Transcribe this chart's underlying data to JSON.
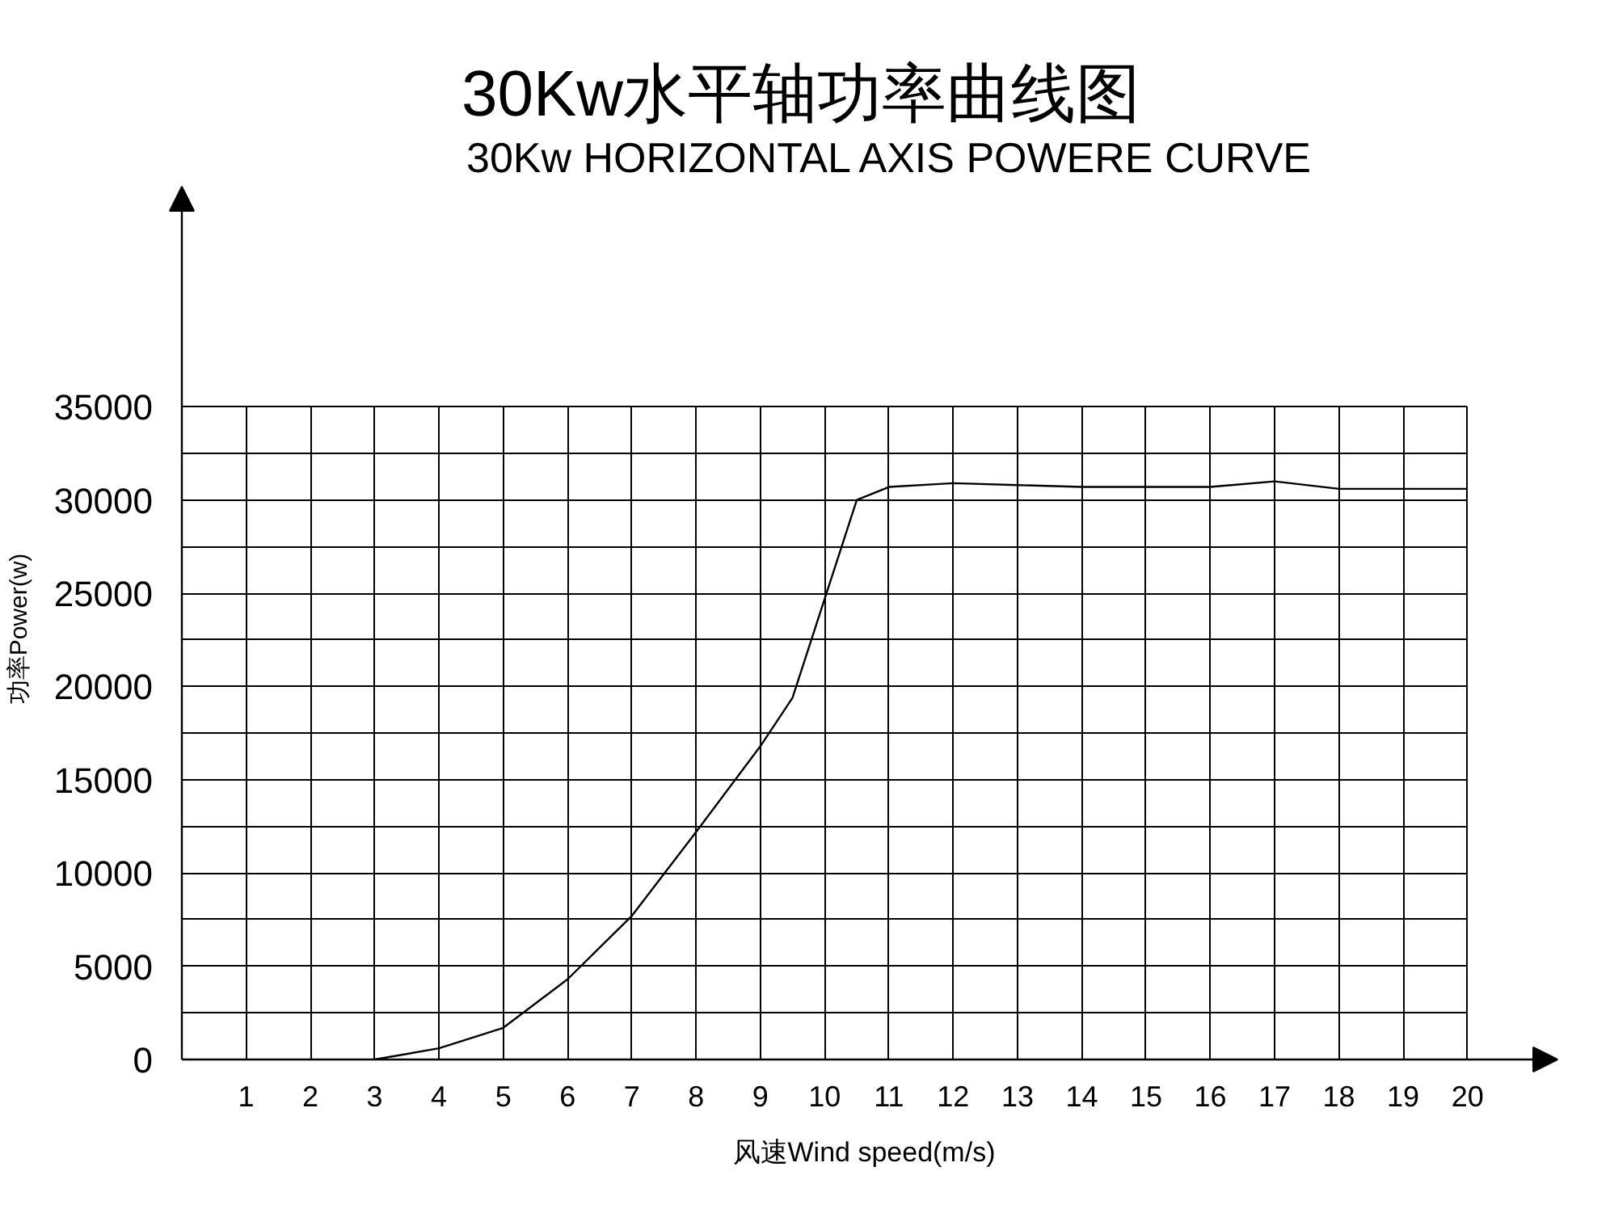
{
  "chart_data": {
    "type": "line",
    "title": "30Kw水平轴功率曲线图",
    "subtitle": "30Kw HORIZONTAL AXIS POWERE CURVE",
    "xlabel": "风速Wind speed(m/s)",
    "ylabel": "功率Power(w)",
    "x": [
      3,
      4,
      5,
      6,
      7,
      8,
      9,
      9.5,
      10.5,
      11,
      12,
      13,
      14,
      15,
      16,
      17,
      18,
      19,
      20
    ],
    "series": [
      {
        "color": "#000000",
        "values": [
          0,
          600,
          1700,
          4300,
          7700,
          12200,
          16800,
          19400,
          30000,
          30700,
          30900,
          30800,
          30700,
          30700,
          30700,
          31000,
          30600,
          30600,
          30600
        ]
      }
    ],
    "xlim": [
      0,
      21.4
    ],
    "ylim": [
      0,
      46800
    ],
    "xticks": [
      {
        "value": 0,
        "label": null
      },
      1,
      2,
      3,
      4,
      5,
      6,
      7,
      8,
      9,
      10,
      11,
      12,
      13,
      14,
      15,
      16,
      17,
      18,
      19,
      20
    ],
    "yticks": [
      0,
      {
        "value": 2500,
        "label": null
      },
      5000,
      {
        "value": 7500,
        "label": null
      },
      10000,
      {
        "value": 12500,
        "label": null
      },
      15000,
      {
        "value": 17500,
        "label": null
      },
      20000,
      {
        "value": 22500,
        "label": null
      },
      25000,
      {
        "value": 27500,
        "label": null
      },
      30000,
      {
        "value": 32500,
        "label": null
      },
      35000
    ],
    "grid": true,
    "marker": "none",
    "line_style": "solid"
  }
}
